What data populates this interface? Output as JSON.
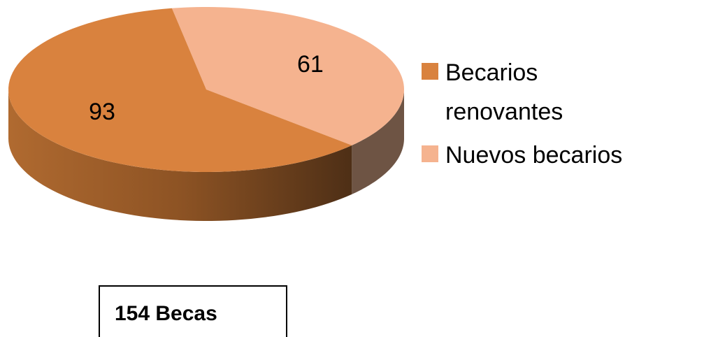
{
  "chart_data": {
    "type": "pie3d",
    "categories": [
      "Becarios renovantes",
      "Nuevos becarios"
    ],
    "values": [
      93,
      61
    ],
    "colors": [
      "#d9823e",
      "#f5b38f"
    ],
    "legend": "right",
    "annotation": "154 Becas"
  }
}
